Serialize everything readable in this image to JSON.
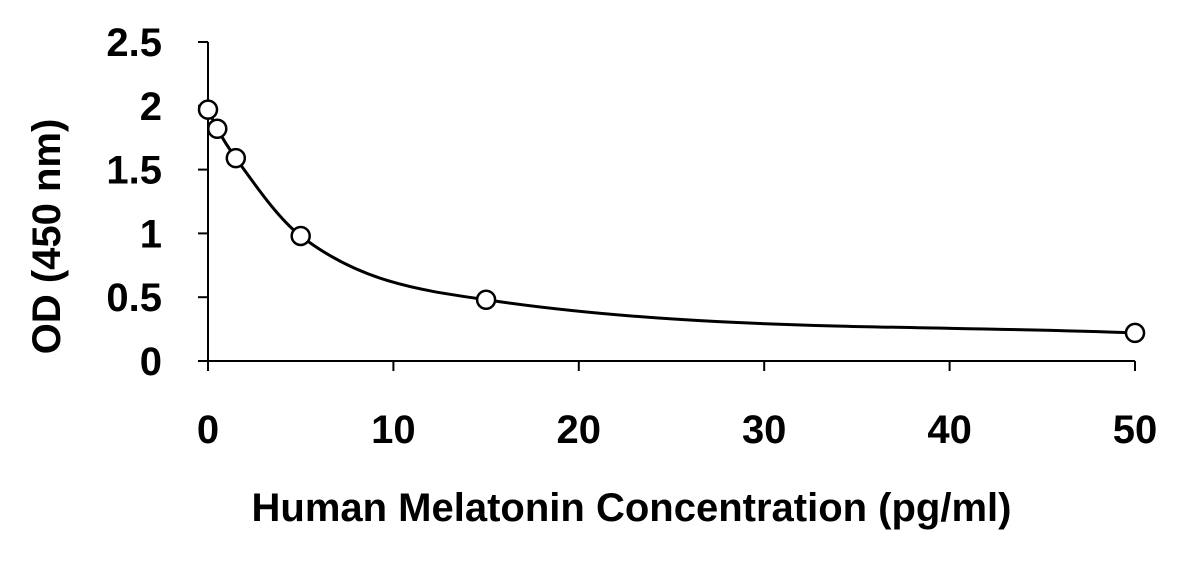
{
  "chart_data": {
    "type": "scatter",
    "title": "",
    "xlabel": "Human Melatonin Concentration (pg/ml)",
    "ylabel": "OD (450 nm)",
    "xlim": [
      0,
      50
    ],
    "ylim": [
      0,
      2.5
    ],
    "xticks": [
      "0",
      "10",
      "20",
      "30",
      "40",
      "50"
    ],
    "yticks": [
      "0",
      "0.5",
      "1",
      "1.5",
      "2",
      "2.5"
    ],
    "grid": false,
    "legend": "none",
    "series": [
      {
        "x": [
          0,
          0.5,
          1.5,
          5,
          15,
          50
        ],
        "y": [
          1.97,
          1.82,
          1.59,
          0.98,
          0.48,
          0.22
        ],
        "marker": "open-circle",
        "fit": "smooth-curve"
      }
    ],
    "colors": {
      "line": "#000000",
      "marker_fill": "#ffffff",
      "marker_edge": "#000000"
    }
  }
}
